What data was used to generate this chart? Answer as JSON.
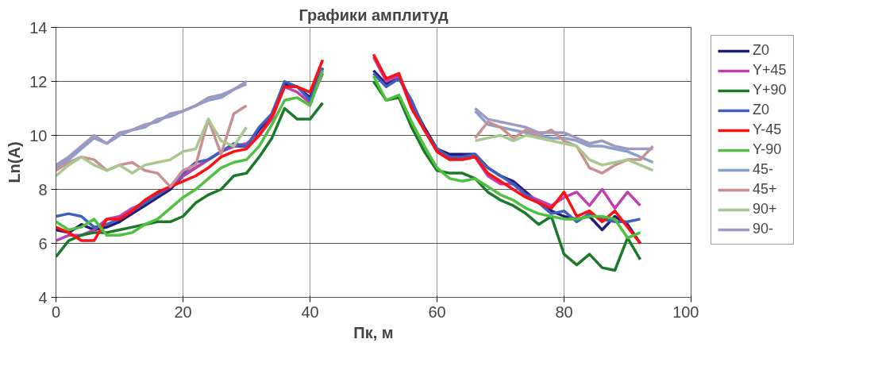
{
  "chart_data": {
    "type": "line",
    "title": "Графики амплитуд",
    "xlabel": "Пк, м",
    "ylabel": "Ln(A)",
    "xlim": [
      0,
      100
    ],
    "xticks": [
      0,
      20,
      40,
      60,
      80,
      100
    ],
    "ylim": [
      4,
      14
    ],
    "yticks": [
      4,
      6,
      8,
      10,
      12,
      14
    ],
    "grid": true,
    "legend": "right",
    "marker": "none",
    "line_style": "solid",
    "x": [
      0,
      2,
      4,
      6,
      8,
      10,
      12,
      14,
      16,
      18,
      20,
      22,
      24,
      26,
      28,
      30,
      32,
      34,
      36,
      38,
      40,
      42,
      44,
      46,
      48,
      50,
      52,
      54,
      56,
      58,
      60,
      62,
      64,
      66,
      68,
      70,
      72,
      74,
      76,
      78,
      80,
      82,
      84,
      86,
      88,
      90,
      92,
      94
    ],
    "series": [
      {
        "name": "Z0",
        "color": "#1f1f7a",
        "values": [
          6.5,
          6.4,
          6.7,
          6.5,
          6.6,
          6.8,
          7.1,
          7.4,
          7.7,
          8.0,
          8.5,
          8.8,
          9.1,
          9.4,
          9.6,
          9.6,
          10.2,
          10.8,
          11.9,
          11.8,
          11.4,
          12.5,
          null,
          null,
          null,
          12.4,
          11.9,
          12.2,
          11.2,
          10.3,
          9.5,
          9.3,
          9.3,
          9.3,
          8.8,
          8.5,
          8.3,
          7.9,
          7.5,
          7.2,
          7.0,
          6.9,
          7.0,
          6.5,
          7.0,
          6.7,
          6.0,
          null
        ]
      },
      {
        "name": "Y+45",
        "color": "#c040b0",
        "values": [
          6.1,
          6.3,
          6.3,
          6.5,
          6.9,
          7.0,
          7.3,
          7.5,
          7.8,
          8.1,
          8.5,
          8.8,
          9.1,
          9.4,
          9.6,
          9.7,
          10.0,
          10.6,
          11.8,
          11.6,
          11.2,
          12.3,
          null,
          null,
          null,
          12.9,
          12.0,
          12.2,
          11.0,
          10.2,
          9.4,
          9.1,
          9.2,
          9.2,
          8.5,
          8.2,
          8.2,
          7.8,
          7.6,
          7.4,
          7.7,
          7.9,
          7.4,
          8.0,
          7.3,
          7.9,
          7.4,
          null
        ]
      },
      {
        "name": "Y+90",
        "color": "#1a7a2a",
        "values": [
          5.5,
          6.1,
          6.3,
          6.4,
          6.4,
          6.5,
          6.6,
          6.7,
          6.8,
          6.8,
          7.0,
          7.5,
          7.8,
          8.0,
          8.5,
          8.6,
          9.2,
          9.9,
          11.0,
          10.6,
          10.6,
          11.2,
          null,
          null,
          null,
          12.0,
          11.3,
          11.4,
          10.3,
          9.4,
          8.7,
          8.6,
          8.6,
          8.4,
          7.9,
          7.6,
          7.4,
          7.1,
          6.7,
          7.0,
          5.6,
          5.2,
          5.6,
          5.1,
          5.0,
          6.2,
          5.4,
          null
        ]
      },
      {
        "name": "Z0",
        "color": "#4060c0",
        "values": [
          7.0,
          7.1,
          7.0,
          6.6,
          6.7,
          6.9,
          7.2,
          7.5,
          7.8,
          8.1,
          8.6,
          9.0,
          9.1,
          9.4,
          9.7,
          9.6,
          10.3,
          10.8,
          12.0,
          11.8,
          11.3,
          12.5,
          null,
          null,
          null,
          12.3,
          11.8,
          12.1,
          11.3,
          10.2,
          9.5,
          9.2,
          9.2,
          9.3,
          8.8,
          8.5,
          8.2,
          7.8,
          7.5,
          7.1,
          7.2,
          6.8,
          7.1,
          6.9,
          6.8,
          6.8,
          6.9,
          null
        ]
      },
      {
        "name": "Y-45",
        "color": "#ff1010",
        "values": [
          6.6,
          6.4,
          6.1,
          6.1,
          6.9,
          6.9,
          7.2,
          7.6,
          7.9,
          8.1,
          8.3,
          8.5,
          8.8,
          9.2,
          9.4,
          9.5,
          10.0,
          10.7,
          11.8,
          11.8,
          11.6,
          12.8,
          null,
          null,
          null,
          13.0,
          12.1,
          12.3,
          11.0,
          10.2,
          9.4,
          9.1,
          9.1,
          9.2,
          8.6,
          8.3,
          8.0,
          7.7,
          7.5,
          7.3,
          7.9,
          7.0,
          7.2,
          6.8,
          7.2,
          6.6,
          6.0,
          null
        ]
      },
      {
        "name": "Y-90",
        "color": "#50c040",
        "values": [
          6.8,
          6.5,
          6.6,
          6.9,
          6.3,
          6.3,
          6.4,
          6.7,
          6.9,
          7.3,
          7.7,
          8.0,
          8.4,
          8.8,
          9.0,
          9.1,
          9.6,
          10.4,
          11.3,
          11.4,
          11.1,
          12.4,
          null,
          null,
          null,
          12.2,
          11.3,
          11.5,
          10.5,
          9.6,
          8.8,
          8.4,
          8.3,
          8.4,
          8.1,
          7.8,
          7.6,
          7.3,
          7.1,
          7.0,
          6.9,
          6.9,
          7.0,
          7.0,
          6.9,
          6.2,
          6.4,
          null
        ]
      },
      {
        "name": "45-",
        "color": "#8aa0cc",
        "values": [
          8.8,
          9.1,
          9.5,
          9.9,
          9.7,
          10.0,
          10.2,
          10.3,
          10.6,
          10.7,
          10.9,
          11.1,
          11.3,
          11.4,
          11.7,
          11.9,
          null,
          null,
          null,
          null,
          null,
          null,
          null,
          null,
          null,
          null,
          null,
          null,
          null,
          null,
          null,
          null,
          null,
          10.9,
          10.4,
          10.3,
          10.2,
          10.1,
          10.0,
          9.9,
          9.9,
          9.8,
          9.6,
          9.6,
          9.5,
          9.4,
          9.2,
          9.0
        ]
      },
      {
        "name": "45+",
        "color": "#c89090",
        "values": [
          8.7,
          9.0,
          9.2,
          9.1,
          8.7,
          8.9,
          9.0,
          8.7,
          8.6,
          8.1,
          8.7,
          8.9,
          10.6,
          9.3,
          10.8,
          11.1,
          null,
          null,
          null,
          null,
          null,
          null,
          null,
          null,
          null,
          null,
          null,
          null,
          null,
          null,
          null,
          null,
          null,
          9.9,
          10.5,
          10.3,
          9.9,
          10.2,
          10.0,
          10.2,
          9.8,
          9.6,
          8.8,
          8.6,
          8.9,
          9.1,
          9.1,
          9.6
        ]
      },
      {
        "name": "90+",
        "color": "#a8c890",
        "values": [
          8.5,
          8.9,
          9.2,
          8.9,
          8.7,
          8.9,
          8.6,
          8.9,
          9.0,
          9.1,
          9.4,
          9.5,
          10.6,
          9.8,
          9.6,
          10.3,
          null,
          null,
          null,
          null,
          null,
          null,
          null,
          null,
          null,
          null,
          null,
          null,
          null,
          null,
          null,
          null,
          null,
          9.8,
          9.9,
          10.0,
          9.8,
          10.0,
          9.9,
          9.8,
          9.7,
          9.6,
          9.1,
          8.9,
          9.0,
          9.1,
          8.9,
          8.7
        ]
      },
      {
        "name": "90-",
        "color": "#a098c0",
        "values": [
          8.9,
          9.2,
          9.6,
          10.0,
          9.7,
          10.1,
          10.2,
          10.4,
          10.5,
          10.8,
          10.9,
          11.1,
          11.4,
          11.5,
          11.7,
          12.0,
          null,
          null,
          null,
          null,
          null,
          null,
          null,
          null,
          null,
          null,
          null,
          null,
          null,
          null,
          null,
          null,
          null,
          11.0,
          10.6,
          10.5,
          10.4,
          10.3,
          10.1,
          10.1,
          10.1,
          9.9,
          9.7,
          9.8,
          9.6,
          9.5,
          9.5,
          9.5
        ]
      }
    ]
  }
}
